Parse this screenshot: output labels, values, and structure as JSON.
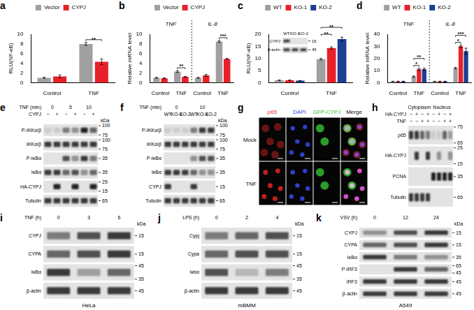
{
  "chart_data": [
    {
      "panel": "a",
      "type": "bar",
      "y_label": "RLU(NF-κB)",
      "categories": [
        "Control",
        "TNF"
      ],
      "series": [
        {
          "name": "Vector",
          "color": "#a0a0a0",
          "values": [
            1.0,
            8.0
          ],
          "errors": [
            0.1,
            0.3
          ]
        },
        {
          "name": "CYPJ",
          "color": "#e8202a",
          "values": [
            1.3,
            4.3
          ],
          "errors": [
            0.3,
            0.6
          ]
        }
      ],
      "ylim": [
        0,
        10
      ],
      "yticks": [
        0,
        2,
        4,
        6,
        8,
        10
      ],
      "grid": false,
      "legend": "top",
      "annotations": [
        {
          "text": "**",
          "category": 1,
          "series": [
            0,
            1
          ]
        }
      ]
    },
    {
      "panel": "b",
      "type": "bar",
      "y_label": "Relative mRNA level",
      "categories": [
        "Control",
        "TNF",
        "Control",
        "TNF"
      ],
      "groups": [
        {
          "label": "TNF",
          "span": 2
        },
        {
          "label": "IL-8",
          "span": 2
        }
      ],
      "series": [
        {
          "name": "Vector",
          "color": "#a0a0a0",
          "values": [
            1.0,
            2.3,
            1.0,
            8.5
          ],
          "errors": [
            0.1,
            0.2,
            0.1,
            0.2
          ]
        },
        {
          "name": "CYPJ",
          "color": "#e8202a",
          "values": [
            0.9,
            1.2,
            1.5,
            4.9
          ],
          "errors": [
            0.1,
            0.1,
            0.2,
            0.1
          ]
        }
      ],
      "ylim": [
        0,
        10
      ],
      "yticks": [
        0,
        2,
        4,
        6,
        8,
        10
      ],
      "grid": false,
      "legend": "top",
      "annotations": [
        {
          "text": "**",
          "category": 1,
          "series": [
            0,
            1
          ]
        },
        {
          "text": "***",
          "category": 3,
          "series": [
            0,
            1
          ]
        }
      ]
    },
    {
      "panel": "c",
      "type": "bar",
      "y_label": "RLU(NF-κB)",
      "categories": [
        "Control",
        "TNF"
      ],
      "series": [
        {
          "name": "WT",
          "color": "#a0a0a0",
          "values": [
            1.0,
            9.7
          ],
          "errors": [
            0.1,
            0.3
          ]
        },
        {
          "name": "KO-1",
          "color": "#e8202a",
          "values": [
            1.0,
            14.3
          ],
          "errors": [
            0.1,
            0.5
          ]
        },
        {
          "name": "KO-2",
          "color": "#1c3f94",
          "values": [
            0.8,
            18.0
          ],
          "errors": [
            0.1,
            0.8
          ]
        }
      ],
      "ylim": [
        0,
        20
      ],
      "yticks": [
        0,
        5,
        10,
        15,
        20
      ],
      "grid": false,
      "legend": "top",
      "annotations": [
        {
          "text": "**",
          "category": 1,
          "series": [
            0,
            1
          ]
        },
        {
          "text": "**",
          "category": 1,
          "series": [
            0,
            2
          ]
        }
      ],
      "inset": {
        "headers": [
          {
            "cells": [
              {
                "text": "WT",
                "span": 1
              },
              {
                "text": "KO-1",
                "span": 1
              },
              {
                "text": "KO-2",
                "span": 1
              }
            ]
          }
        ],
        "rows": [
          {
            "label": "CYPJ",
            "bands": [
              0.8,
              0,
              0
            ],
            "markers": [
              15
            ]
          },
          {
            "label": "β-actin",
            "bands": [
              0.8,
              0.8,
              0.8
            ],
            "markers": [
              45
            ]
          }
        ]
      }
    },
    {
      "panel": "d",
      "type": "bar",
      "y_label": "Relative mRNA level",
      "categories": [
        "Control",
        "TNF",
        "Control",
        "TNF"
      ],
      "groups": [
        {
          "label": "TNF",
          "span": 2
        },
        {
          "label": "IL-8",
          "span": 2
        }
      ],
      "series": [
        {
          "name": "WT",
          "color": "#a0a0a0",
          "values": [
            1.0,
            5.0,
            1.0,
            12.0
          ],
          "errors": [
            0.2,
            0.5,
            0.2,
            0.6
          ]
        },
        {
          "name": "KO-1",
          "color": "#e8202a",
          "values": [
            1.0,
            11.0,
            1.0,
            30.0
          ],
          "errors": [
            0.2,
            0.8,
            0.2,
            1.0
          ]
        },
        {
          "name": "KO-2",
          "color": "#1c3f94",
          "values": [
            1.0,
            11.0,
            1.0,
            26.0
          ],
          "errors": [
            0.2,
            0.9,
            0.2,
            2.5
          ]
        }
      ],
      "ylim": [
        0,
        40
      ],
      "yticks": [
        0,
        10,
        20,
        30,
        40
      ],
      "grid": false,
      "legend": "top",
      "annotations": [
        {
          "text": "*",
          "category": 1,
          "series": [
            0,
            1
          ]
        },
        {
          "text": "**",
          "category": 1,
          "series": [
            0,
            2
          ]
        },
        {
          "text": "*",
          "category": 3,
          "series": [
            0,
            1
          ]
        },
        {
          "text": "***",
          "category": 3,
          "series": [
            0,
            2
          ]
        }
      ]
    }
  ],
  "blots": [
    {
      "panel": "e",
      "unit": "kDa",
      "headers": [
        {
          "label": "TNF (min)",
          "cells": [
            {
              "text": "0",
              "span": 2
            },
            {
              "text": "5",
              "span": 2
            },
            {
              "text": "10",
              "span": 2
            }
          ]
        },
        {
          "label": "CYPJ",
          "cells": [
            {
              "text": "−",
              "span": 1
            },
            {
              "text": "+",
              "span": 1
            },
            {
              "text": "−",
              "span": 1
            },
            {
              "text": "+",
              "span": 1
            },
            {
              "text": "−",
              "span": 1
            },
            {
              "text": "+",
              "span": 1
            }
          ]
        }
      ],
      "rows": [
        {
          "label": "P-IKKα/β",
          "bands": [
            0.1,
            0.1,
            0.5,
            0.4,
            0.9,
            0.6
          ],
          "markers": [
            100,
            75
          ]
        },
        {
          "label": "IKKα/β",
          "bands": [
            0.8,
            0.8,
            0.8,
            0.8,
            0.8,
            0.8
          ],
          "markers": [
            100,
            75
          ]
        },
        {
          "label": "P-IκBα",
          "bands": [
            0,
            0,
            0.7,
            0.4,
            0.8,
            0.5
          ],
          "markers": [
            35
          ]
        },
        {
          "label": "IκBα",
          "bands": [
            0.8,
            0.8,
            0.6,
            0.7,
            0.4,
            0.6
          ],
          "markers": [
            35
          ]
        },
        {
          "label": "HA-CYPJ",
          "bands": [
            0,
            0.9,
            0,
            0.9,
            0,
            0.9
          ],
          "markers": [
            25,
            15
          ]
        },
        {
          "label": "Tubulin",
          "bands": [
            0.8,
            0.8,
            0.8,
            0.8,
            0.8,
            0.8
          ],
          "markers": [
            65
          ]
        }
      ]
    },
    {
      "panel": "f",
      "unit": "kDa",
      "headers": [
        {
          "label": "TNF (min)",
          "cells": [
            {
              "text": "0",
              "span": 3
            },
            {
              "text": "10",
              "span": 3
            }
          ]
        },
        {
          "cells": [
            {
              "text": "WT",
              "span": 1
            },
            {
              "text": "KO-1",
              "span": 1
            },
            {
              "text": "KO-2",
              "span": 1
            },
            {
              "text": "WT",
              "span": 1
            },
            {
              "text": "KO-1",
              "span": 1
            },
            {
              "text": "KO-2",
              "span": 1
            }
          ]
        }
      ],
      "rows": [
        {
          "label": "P-IKKα/β",
          "bands": [
            0.1,
            0.1,
            0.1,
            0.5,
            0.8,
            0.8
          ],
          "markers": [
            100,
            75
          ]
        },
        {
          "label": "IKKα/β",
          "bands": [
            0.8,
            0.8,
            0.8,
            0.8,
            0.8,
            0.8
          ],
          "markers": [
            100,
            75
          ]
        },
        {
          "label": "P-IκBα",
          "bands": [
            0,
            0,
            0,
            0.4,
            0.7,
            0.7
          ],
          "markers": [
            35
          ]
        },
        {
          "label": "IκBα",
          "bands": [
            0.8,
            0.8,
            0.8,
            0.6,
            0.4,
            0.4
          ],
          "markers": [
            35
          ]
        },
        {
          "label": "CYPJ",
          "bands": [
            0.8,
            0,
            0,
            0.8,
            0,
            0
          ],
          "markers": [
            15
          ]
        },
        {
          "label": "Tubulin",
          "bands": [
            0.8,
            0.8,
            0.8,
            0.8,
            0.8,
            0.8
          ],
          "markers": [
            65
          ]
        }
      ]
    },
    {
      "panel": "h",
      "headers": [
        {
          "cells": [
            {
              "text": "Cytoplasm",
              "span": 4
            },
            {
              "text": "Nucleus",
              "span": 4
            }
          ]
        },
        {
          "label": "HA-CYPJ",
          "cells": [
            {
              "text": "−",
              "span": 1
            },
            {
              "text": "+",
              "span": 1
            },
            {
              "text": "−",
              "span": 1
            },
            {
              "text": "+",
              "span": 1
            },
            {
              "text": "−",
              "span": 1
            },
            {
              "text": "+",
              "span": 1
            },
            {
              "text": "−",
              "span": 1
            },
            {
              "text": "+",
              "span": 1
            }
          ]
        },
        {
          "label": "TNF",
          "cells": [
            {
              "text": "−",
              "span": 1
            },
            {
              "text": "−",
              "span": 1
            },
            {
              "text": "+",
              "span": 1
            },
            {
              "text": "+",
              "span": 1
            },
            {
              "text": "−",
              "span": 1
            },
            {
              "text": "−",
              "span": 1
            },
            {
              "text": "+",
              "span": 1
            },
            {
              "text": "+",
              "span": 1
            }
          ]
        }
      ],
      "rows": [
        {
          "label": "p65",
          "bands": [
            0.8,
            0.8,
            0.6,
            0.5,
            0.1,
            0.1,
            0.6,
            0.3
          ],
          "markers": [
            75,
            65
          ]
        },
        {
          "label": "HA-CYPJ",
          "bands": [
            0,
            0.8,
            0,
            0.8,
            0,
            0.4,
            0,
            0.4
          ],
          "markers": [
            25,
            15
          ]
        },
        {
          "label": "PCNA",
          "bands": [
            0,
            0,
            0,
            0,
            0.9,
            0.9,
            0.9,
            0.9
          ],
          "markers": [
            35
          ]
        },
        {
          "label": "Tubulin",
          "bands": [
            0.8,
            0.8,
            0.8,
            0.8,
            0,
            0,
            0,
            0
          ],
          "markers": [
            65
          ]
        }
      ]
    },
    {
      "panel": "i",
      "unit": "kDa",
      "cell_line": "HeLa",
      "headers": [
        {
          "label": "TNF (h)",
          "cells": [
            {
              "text": "0",
              "span": 1
            },
            {
              "text": "3",
              "span": 1
            },
            {
              "text": "6",
              "span": 1
            }
          ]
        }
      ],
      "rows": [
        {
          "label": "CYPJ",
          "bands": [
            0.5,
            0.7,
            0.8
          ],
          "markers": [
            15
          ]
        },
        {
          "label": "CYPA",
          "bands": [
            0.6,
            0.7,
            0.8
          ],
          "markers": [
            15
          ]
        },
        {
          "label": "IκBα",
          "bands": [
            0.8,
            0.3,
            0.6
          ],
          "markers": [
            45,
            35
          ]
        },
        {
          "label": "β-actin",
          "bands": [
            0.8,
            0.8,
            0.8
          ],
          "markers": [
            45
          ]
        }
      ]
    },
    {
      "panel": "j",
      "unit": "kDa",
      "cell_line": "mBMM",
      "headers": [
        {
          "label": "LPS (h)",
          "cells": [
            {
              "text": "0",
              "span": 1
            },
            {
              "text": "2",
              "span": 1
            },
            {
              "text": "4",
              "span": 1
            }
          ]
        }
      ],
      "rows": [
        {
          "label": "Cypj",
          "bands": [
            0.5,
            0.6,
            0.7
          ],
          "markers": [
            15
          ]
        },
        {
          "label": "Cypa",
          "bands": [
            0.6,
            0.7,
            0.7
          ],
          "markers": [
            15
          ]
        },
        {
          "label": "Iκbα",
          "bands": [
            0.7,
            0.2,
            0.5
          ],
          "markers": [
            45,
            35
          ]
        },
        {
          "label": "β-actin",
          "bands": [
            0.8,
            0.8,
            0.8
          ],
          "markers": [
            45
          ]
        }
      ]
    },
    {
      "panel": "k",
      "unit": "kDa",
      "cell_line": "A549",
      "headers": [
        {
          "label": "VSV (h)",
          "cells": [
            {
              "text": "0",
              "span": 1
            },
            {
              "text": "12",
              "span": 1
            },
            {
              "text": "24",
              "span": 1
            }
          ]
        }
      ],
      "rows": [
        {
          "label": "CYPJ",
          "bands": [
            0.4,
            0.7,
            0.8
          ],
          "markers": [
            15
          ]
        },
        {
          "label": "CYPA",
          "bands": [
            0.6,
            0.7,
            0.8
          ],
          "markers": [
            15
          ]
        },
        {
          "label": "IκBα",
          "bands": [
            0.8,
            0.5,
            0.4
          ],
          "markers": [
            35
          ]
        },
        {
          "label": "P-IRF3",
          "bands": [
            0,
            0.8,
            0.6
          ],
          "markers": [
            65,
            45
          ]
        },
        {
          "label": "IRF3",
          "bands": [
            0.8,
            0.8,
            0.8
          ],
          "markers": [
            45
          ]
        },
        {
          "label": "β-actin",
          "bands": [
            0.8,
            0.8,
            0.8
          ],
          "markers": [
            45
          ]
        }
      ]
    }
  ],
  "microscopy": {
    "panel": "g",
    "columns": [
      {
        "label": "p65",
        "color": "#e02020"
      },
      {
        "label": "DAPI",
        "color": "#3040e0"
      },
      {
        "label": "GFP-CYPJ",
        "color": "#30c030"
      },
      {
        "label": "Merge",
        "color": "#000000"
      }
    ],
    "rows": [
      "Mock",
      "TNF"
    ]
  }
}
